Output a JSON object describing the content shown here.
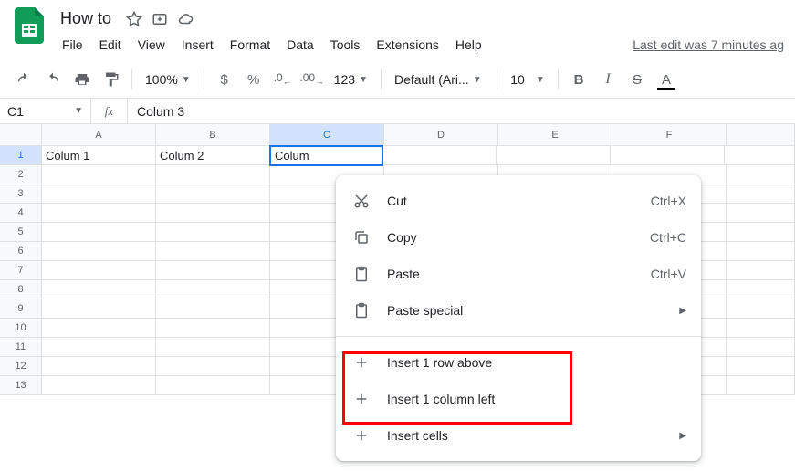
{
  "header": {
    "doc_title": "How to",
    "last_edit": "Last edit was 7 minutes ag"
  },
  "menubar": [
    "File",
    "Edit",
    "View",
    "Insert",
    "Format",
    "Data",
    "Tools",
    "Extensions",
    "Help"
  ],
  "toolbar": {
    "zoom": "100%",
    "currency": "$",
    "percent": "%",
    "dec_dec": ".0",
    "inc_dec": ".00",
    "num_format": "123",
    "font": "Default (Ari...",
    "font_size": "10",
    "bold": "B",
    "italic": "I",
    "strike": "S",
    "text_color": "A"
  },
  "formula_bar": {
    "cell_ref": "C1",
    "fx": "fx",
    "value": "Colum 3"
  },
  "columns": [
    "A",
    "B",
    "C",
    "D",
    "E",
    "F"
  ],
  "selected_col": "C",
  "row_count": 13,
  "selected_row": 1,
  "cells": {
    "A1": "Colum 1",
    "B1": "Colum 2",
    "C1": "Colum"
  },
  "context_menu": {
    "items": [
      {
        "icon": "cut",
        "label": "Cut",
        "shortcut": "Ctrl+X"
      },
      {
        "icon": "copy",
        "label": "Copy",
        "shortcut": "Ctrl+C"
      },
      {
        "icon": "paste",
        "label": "Paste",
        "shortcut": "Ctrl+V"
      },
      {
        "icon": "paste",
        "label": "Paste special",
        "submenu": true
      }
    ],
    "items2": [
      {
        "icon": "plus",
        "label": "Insert 1 row above"
      },
      {
        "icon": "plus",
        "label": "Insert 1 column left"
      },
      {
        "icon": "plus",
        "label": "Insert cells",
        "submenu": true
      }
    ]
  },
  "colors": {
    "accent": "#1a73e8",
    "logo": "#0f9d58",
    "highlight": "#ff0000"
  }
}
